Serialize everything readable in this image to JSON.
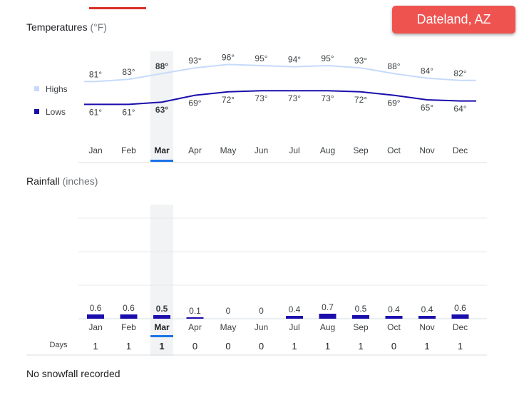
{
  "location": "Dateland, AZ",
  "temperature_section": {
    "title": "Temperatures",
    "unit": "(°F)"
  },
  "rainfall_section": {
    "title": "Rainfall",
    "unit": "(inches)"
  },
  "legend": {
    "highs": {
      "label": "Highs",
      "color": "#c6dafc"
    },
    "lows": {
      "label": "Lows",
      "color": "#1a0dab"
    }
  },
  "days_label": "Days",
  "selected_month": "Mar",
  "snowfall_note": "No snowfall recorded",
  "colors": {
    "accent": "#1a73e8",
    "badge": "#ef5350",
    "rain_bar": "#1a0dab",
    "highs_line": "#c6dafc",
    "lows_line": "#1a0dab"
  },
  "chart_data": [
    {
      "type": "line",
      "title": "Temperatures",
      "categories": [
        "Jan",
        "Feb",
        "Mar",
        "Apr",
        "May",
        "Jun",
        "Jul",
        "Aug",
        "Sep",
        "Oct",
        "Nov",
        "Dec"
      ],
      "series": [
        {
          "name": "Highs",
          "values": [
            81,
            83,
            88,
            93,
            96,
            95,
            94,
            95,
            93,
            88,
            84,
            82
          ],
          "labels": [
            "81°",
            "83°",
            "88°",
            "93°",
            "96°",
            "95°",
            "94°",
            "95°",
            "93°",
            "88°",
            "84°",
            "82°"
          ]
        },
        {
          "name": "Lows",
          "values": [
            61,
            61,
            63,
            69,
            72,
            73,
            73,
            73,
            72,
            69,
            65,
            64
          ],
          "labels": [
            "61°",
            "61°",
            "63°",
            "69°",
            "72°",
            "73°",
            "73°",
            "73°",
            "72°",
            "69°",
            "65°",
            "64°"
          ]
        }
      ]
    },
    {
      "type": "bar",
      "title": "Rainfall",
      "categories": [
        "Jan",
        "Feb",
        "Mar",
        "Apr",
        "May",
        "Jun",
        "Jul",
        "Aug",
        "Sep",
        "Oct",
        "Nov",
        "Dec"
      ],
      "values": [
        0.6,
        0.6,
        0.5,
        0.1,
        0,
        0,
        0.4,
        0.7,
        0.5,
        0.4,
        0.4,
        0.6
      ],
      "labels": [
        "0.6",
        "0.6",
        "0.5",
        "0.1",
        "0",
        "0",
        "0.4",
        "0.7",
        "0.5",
        "0.4",
        "0.4",
        "0.6"
      ],
      "ylim": [
        0,
        4
      ],
      "days": [
        "1",
        "1",
        "1",
        "0",
        "0",
        "0",
        "1",
        "1",
        "1",
        "0",
        "1",
        "1"
      ]
    }
  ]
}
